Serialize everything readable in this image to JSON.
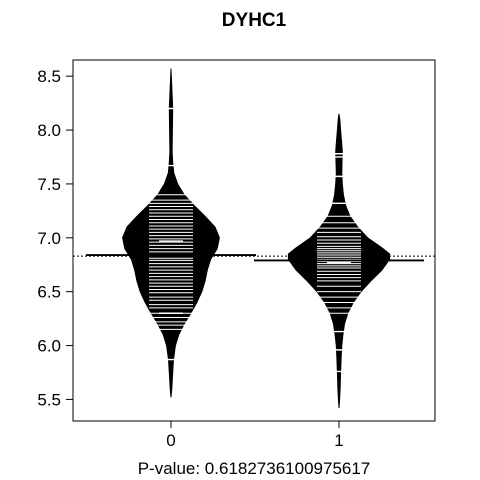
{
  "chart_data": {
    "type": "beanplot",
    "title": "DYHC1",
    "xlabel": "P-value: 0.6182736100975617",
    "ylabel": "",
    "categories": [
      "0",
      "1"
    ],
    "ylim": [
      5.3,
      8.65
    ],
    "yticks": [
      5.5,
      6.0,
      6.5,
      7.0,
      7.5,
      8.0,
      8.5
    ],
    "ytick_labels": [
      "5.5",
      "6.0",
      "6.5",
      "7.0",
      "7.5",
      "8.0",
      "8.5"
    ],
    "overall_mean": 6.83,
    "grid": false,
    "series": [
      {
        "category": "0",
        "mean": 6.84,
        "density": [
          [
            5.52,
            0.0
          ],
          [
            5.6,
            0.015
          ],
          [
            5.75,
            0.03
          ],
          [
            5.87,
            0.045
          ],
          [
            6.0,
            0.08
          ],
          [
            6.1,
            0.14
          ],
          [
            6.2,
            0.24
          ],
          [
            6.3,
            0.36
          ],
          [
            6.4,
            0.47
          ],
          [
            6.5,
            0.56
          ],
          [
            6.6,
            0.62
          ],
          [
            6.7,
            0.66
          ],
          [
            6.8,
            0.72
          ],
          [
            6.9,
            0.84
          ],
          [
            7.0,
            0.88
          ],
          [
            7.1,
            0.8
          ],
          [
            7.2,
            0.62
          ],
          [
            7.3,
            0.42
          ],
          [
            7.4,
            0.24
          ],
          [
            7.5,
            0.12
          ],
          [
            7.6,
            0.05
          ],
          [
            7.7,
            0.03
          ],
          [
            7.8,
            0.02
          ],
          [
            8.0,
            0.025
          ],
          [
            8.2,
            0.03
          ],
          [
            8.4,
            0.015
          ],
          [
            8.57,
            0.0
          ]
        ],
        "long_marks": [
          5.87,
          6.3,
          6.97,
          7.67,
          8.2
        ],
        "short_marks": [
          6.15,
          6.19,
          6.22,
          6.26,
          6.3,
          6.35,
          6.38,
          6.42,
          6.45,
          6.49,
          6.52,
          6.55,
          6.58,
          6.61,
          6.64,
          6.67,
          6.7,
          6.73,
          6.76,
          6.79,
          6.81,
          6.84,
          6.87,
          6.9,
          6.93,
          6.96,
          6.99,
          7.02,
          7.05,
          7.08,
          7.11,
          7.14,
          7.17,
          7.2,
          7.23,
          7.26,
          7.29,
          7.32,
          7.35,
          7.4
        ]
      },
      {
        "category": "1",
        "mean": 6.79,
        "density": [
          [
            5.42,
            0.0
          ],
          [
            5.5,
            0.01
          ],
          [
            5.6,
            0.02
          ],
          [
            5.75,
            0.03
          ],
          [
            5.9,
            0.04
          ],
          [
            6.0,
            0.05
          ],
          [
            6.1,
            0.07
          ],
          [
            6.2,
            0.1
          ],
          [
            6.3,
            0.16
          ],
          [
            6.4,
            0.26
          ],
          [
            6.5,
            0.4
          ],
          [
            6.6,
            0.58
          ],
          [
            6.7,
            0.78
          ],
          [
            6.8,
            0.92
          ],
          [
            6.85,
            0.92
          ],
          [
            6.9,
            0.8
          ],
          [
            7.0,
            0.52
          ],
          [
            7.1,
            0.34
          ],
          [
            7.2,
            0.2
          ],
          [
            7.3,
            0.12
          ],
          [
            7.4,
            0.08
          ],
          [
            7.5,
            0.06
          ],
          [
            7.6,
            0.05
          ],
          [
            7.7,
            0.055
          ],
          [
            7.8,
            0.06
          ],
          [
            7.9,
            0.045
          ],
          [
            8.0,
            0.03
          ],
          [
            8.1,
            0.015
          ],
          [
            8.15,
            0.0
          ]
        ],
        "long_marks": [
          5.76,
          5.96,
          6.13,
          6.77,
          7.32,
          7.57,
          7.75,
          7.78
        ],
        "short_marks": [
          6.3,
          6.35,
          6.4,
          6.45,
          6.5,
          6.55,
          6.6,
          6.63,
          6.66,
          6.69,
          6.72,
          6.74,
          6.76,
          6.78,
          6.8,
          6.82,
          6.84,
          6.86,
          6.88,
          6.9,
          6.92,
          6.95,
          6.98,
          7.01,
          7.05,
          7.09,
          7.14,
          7.2
        ]
      }
    ]
  }
}
